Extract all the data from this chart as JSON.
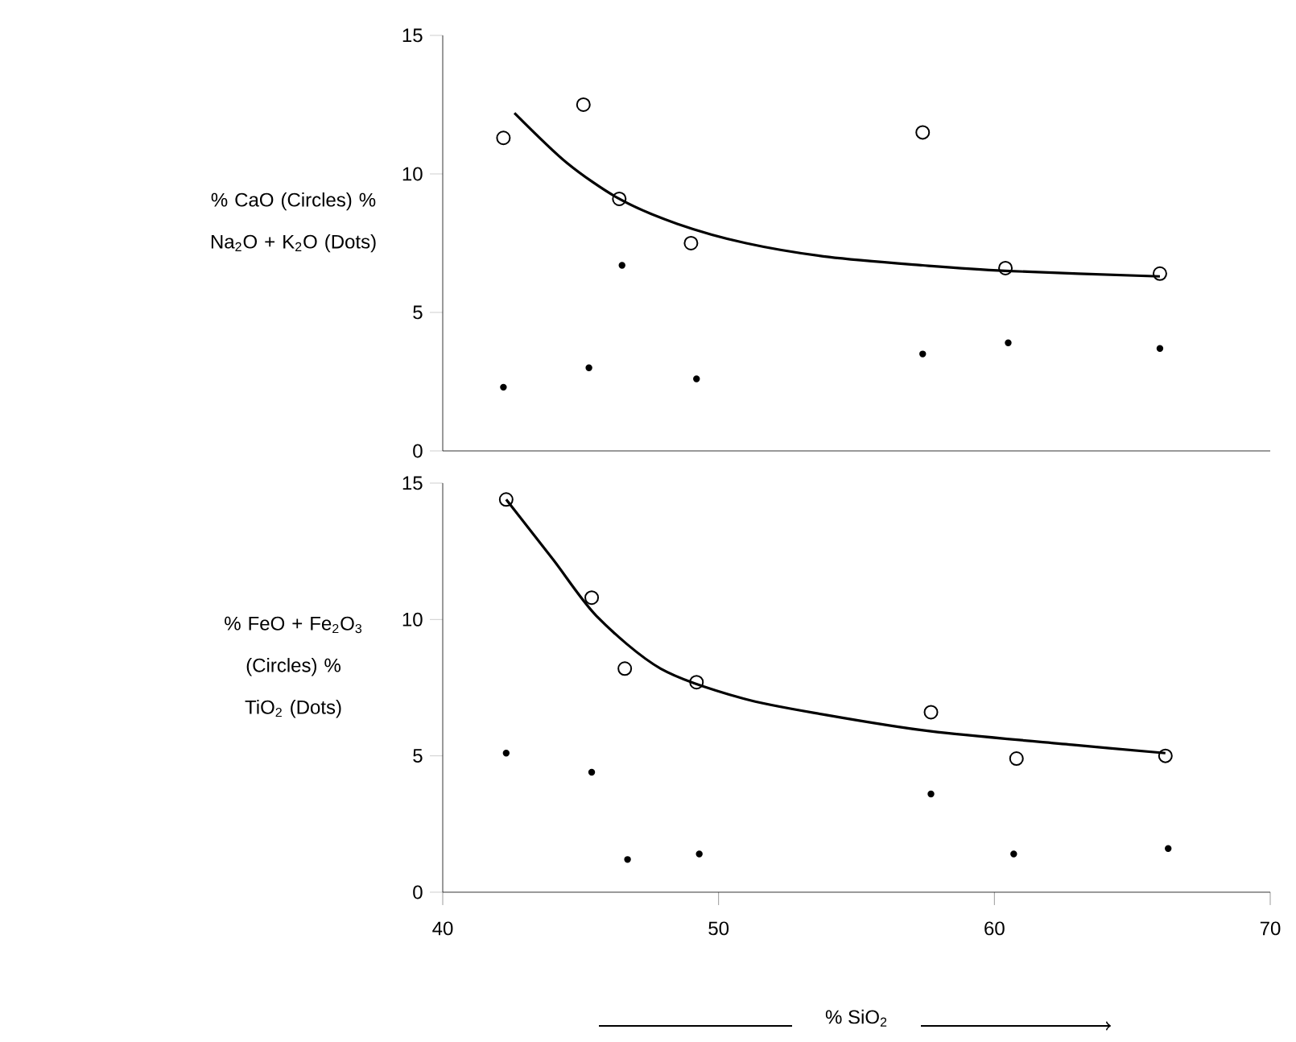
{
  "chart_data": [
    {
      "type": "scatter",
      "xlim": [
        40,
        70
      ],
      "xticks": [
        40,
        50,
        60,
        70
      ],
      "ylim": [
        0,
        15
      ],
      "yticks": [
        0,
        5,
        10,
        15
      ],
      "tick_labels": "y",
      "ylabel": "% CaO (Circles) % Na$_{2}$O + K$_{2}$O (Dots)",
      "series": [
        {
          "marker": "circle",
          "color": "#000000",
          "x": [
            42.2,
            45.1,
            46.4,
            49.0,
            57.4,
            60.4,
            66.0
          ],
          "values": [
            11.3,
            12.5,
            9.1,
            7.5,
            11.5,
            6.6,
            6.4
          ]
        },
        {
          "marker": "circle",
          "color": "#000000",
          "x": [
            42.2,
            45.3,
            46.5,
            49.2,
            57.4,
            60.5,
            66.0
          ],
          "values": [
            2.3,
            3.0,
            6.7,
            2.6,
            3.5,
            3.9,
            3.7
          ]
        },
        {
          "type": "line",
          "marker": "none",
          "color": "#000000",
          "x": [
            42.6,
            44.5,
            46.4,
            48.5,
            51.0,
            54.0,
            57.4,
            60.4,
            66.0
          ],
          "values": [
            12.2,
            10.4,
            9.1,
            8.2,
            7.5,
            7.0,
            6.7,
            6.5,
            6.3
          ]
        }
      ]
    },
    {
      "type": "scatter",
      "xlim": [
        40,
        70
      ],
      "xticks": [
        40,
        50,
        60,
        70
      ],
      "ylim": [
        0,
        15
      ],
      "yticks": [
        0,
        5,
        10,
        15
      ],
      "xlabel": "% SiO$_{2}$",
      "ylabel": "% FeO + Fe$_{2}$O$_{3}$ (Circles) % TiO$_{2}$ (Dots)",
      "series": [
        {
          "marker": "circle",
          "color": "#000000",
          "x": [
            42.3,
            45.4,
            46.6,
            49.2,
            57.7,
            60.8,
            66.2
          ],
          "values": [
            14.4,
            10.8,
            8.2,
            7.7,
            6.6,
            4.9,
            5.0
          ]
        },
        {
          "marker": "circle",
          "color": "#000000",
          "x": [
            42.3,
            45.4,
            46.7,
            49.3,
            57.7,
            60.7,
            66.3
          ],
          "values": [
            5.1,
            4.4,
            1.2,
            1.4,
            3.6,
            1.4,
            1.6
          ]
        },
        {
          "type": "line",
          "marker": "none",
          "color": "#000000",
          "x": [
            42.3,
            44.0,
            45.6,
            47.9,
            50.9,
            53.9,
            57.7,
            62.9,
            66.2
          ],
          "values": [
            14.4,
            12.2,
            10.1,
            8.2,
            7.1,
            6.5,
            5.9,
            5.4,
            5.1
          ]
        }
      ]
    }
  ]
}
